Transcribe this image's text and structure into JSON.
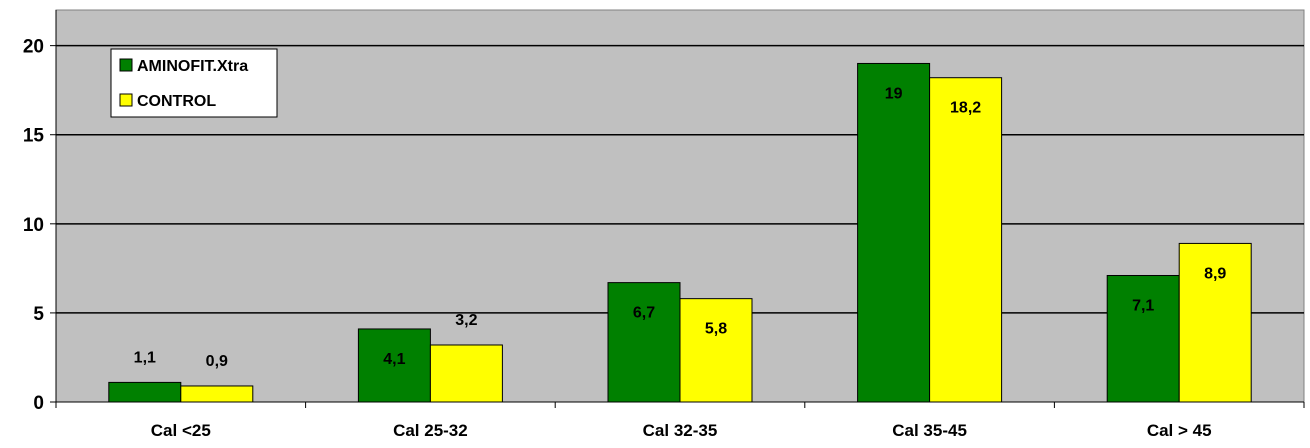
{
  "chart_data": {
    "type": "bar",
    "categories": [
      "Cal <25",
      "Cal 25-32",
      "Cal 32-35",
      "Cal 35-45",
      "Cal > 45"
    ],
    "series": [
      {
        "name": "AMINOFIT.Xtra",
        "color": "#008000",
        "values": [
          1.1,
          4.1,
          6.7,
          19,
          7.1
        ],
        "labels": [
          "1,1",
          "4,1",
          "6,7",
          "19",
          "7,1"
        ]
      },
      {
        "name": "CONTROL",
        "color": "#FFFF00",
        "values": [
          0.9,
          3.2,
          5.8,
          18.2,
          8.9
        ],
        "labels": [
          "0,9",
          "3,2",
          "5,8",
          "18,2",
          "8,9"
        ]
      }
    ],
    "yticks": [
      "0",
      "5",
      "10",
      "15",
      "20"
    ],
    "ylim": [
      0,
      22
    ],
    "grid": true,
    "plot_background": "#C0C0C0",
    "legend_position": "top-left"
  }
}
